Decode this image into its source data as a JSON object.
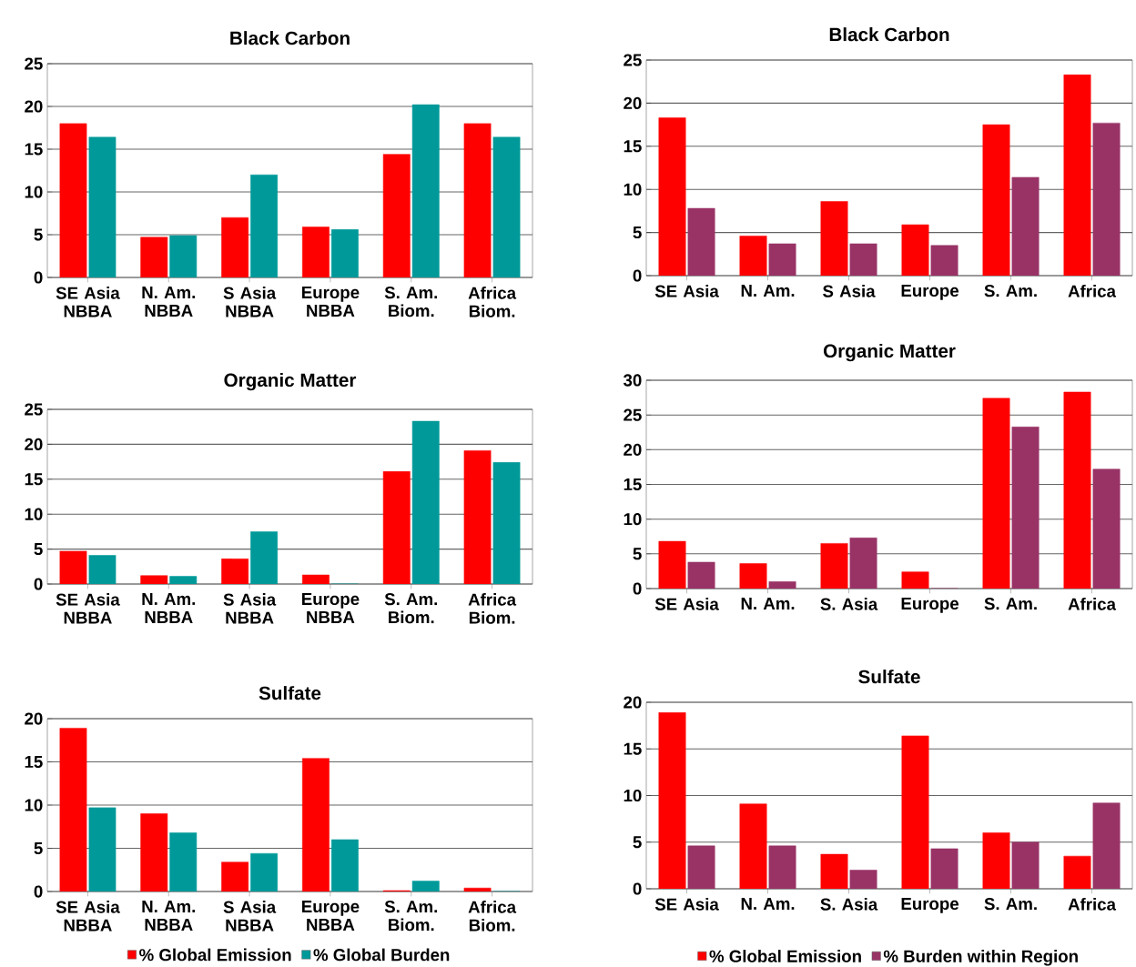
{
  "chart_data": [
    {
      "type": "bar",
      "title": "Black Carbon",
      "categories": [
        "SE Asia NBBA",
        "N. Am. NBBA",
        "S Asia NBBA",
        "Europe NBBA",
        "S. Am. Biom.",
        "Africa Biom."
      ],
      "ylim": [
        0,
        25
      ],
      "yticks": [
        0,
        5,
        10,
        15,
        20,
        25
      ],
      "grid": "y",
      "series": [
        {
          "color": "#ff0000",
          "values": [
            18,
            4.7,
            7,
            5.9,
            14.4,
            18
          ]
        },
        {
          "color": "#009999",
          "values": [
            16.4,
            4.9,
            12,
            5.6,
            20.2,
            16.4
          ]
        }
      ]
    },
    {
      "type": "bar",
      "title": "Black Carbon",
      "categories": [
        "SE Asia",
        "N. Am.",
        "S Asia",
        "Europe",
        "S. Am.",
        "Africa"
      ],
      "ylim": [
        0,
        25
      ],
      "yticks": [
        0,
        5,
        10,
        15,
        20,
        25
      ],
      "grid": "y",
      "series": [
        {
          "color": "#ff0000",
          "values": [
            18.3,
            4.6,
            8.6,
            5.9,
            17.5,
            23.3
          ]
        },
        {
          "color": "#993366",
          "values": [
            7.8,
            3.7,
            3.7,
            3.5,
            11.4,
            17.7
          ]
        }
      ]
    },
    {
      "type": "bar",
      "title": "Organic Matter",
      "categories": [
        "SE Asia NBBA",
        "N. Am. NBBA",
        "S Asia NBBA",
        "Europe NBBA",
        "S. Am. Biom.",
        "Africa Biom."
      ],
      "ylim": [
        0,
        25
      ],
      "yticks": [
        0,
        5,
        10,
        15,
        20,
        25
      ],
      "grid": "y",
      "series": [
        {
          "color": "#ff0000",
          "values": [
            4.7,
            1.2,
            3.6,
            1.3,
            16.1,
            19.1
          ]
        },
        {
          "color": "#009999",
          "values": [
            4.1,
            1.1,
            7.5,
            0,
            23.3,
            17.4
          ]
        }
      ]
    },
    {
      "type": "bar",
      "title": "Organic Matter",
      "categories": [
        "SE Asia",
        "N. Am.",
        "S. Asia",
        "Europe",
        "S. Am.",
        "Africa"
      ],
      "ylim": [
        0,
        30
      ],
      "yticks": [
        0,
        5,
        10,
        15,
        20,
        25,
        30
      ],
      "grid": "y",
      "series": [
        {
          "color": "#ff0000",
          "values": [
            6.8,
            3.6,
            6.5,
            2.4,
            27.4,
            28.3
          ]
        },
        {
          "color": "#993366",
          "values": [
            3.8,
            1.0,
            7.3,
            0,
            23.3,
            17.2
          ]
        }
      ]
    },
    {
      "type": "bar",
      "title": "Sulfate",
      "categories": [
        "SE Asia NBBA",
        "N. Am. NBBA",
        "S Asia NBBA",
        "Europe NBBA",
        "S. Am. Biom.",
        "Africa Biom."
      ],
      "ylim": [
        0,
        20
      ],
      "yticks": [
        0,
        5,
        10,
        15,
        20
      ],
      "grid": "y",
      "legend": "bottom",
      "series": [
        {
          "name": "% Global Emission",
          "color": "#ff0000",
          "values": [
            18.9,
            9.0,
            3.4,
            15.4,
            0.1,
            0.4
          ]
        },
        {
          "name": "% Global Burden",
          "color": "#009999",
          "values": [
            9.7,
            6.8,
            4.4,
            6.0,
            1.2,
            0
          ]
        }
      ]
    },
    {
      "type": "bar",
      "title": "Sulfate",
      "categories": [
        "SE Asia",
        "N. Am.",
        "S. Asia",
        "Europe",
        "S. Am.",
        "Africa"
      ],
      "ylim": [
        0,
        20
      ],
      "yticks": [
        0,
        5,
        10,
        15,
        20
      ],
      "grid": "y",
      "legend": "bottom",
      "series": [
        {
          "name": "% Global Emission",
          "color": "#ff0000",
          "values": [
            18.9,
            9.1,
            3.7,
            16.4,
            6.0,
            3.5
          ]
        },
        {
          "name": "% Burden within Region",
          "color": "#993366",
          "values": [
            4.6,
            4.6,
            2.0,
            4.3,
            5.0,
            9.2
          ]
        }
      ]
    }
  ]
}
